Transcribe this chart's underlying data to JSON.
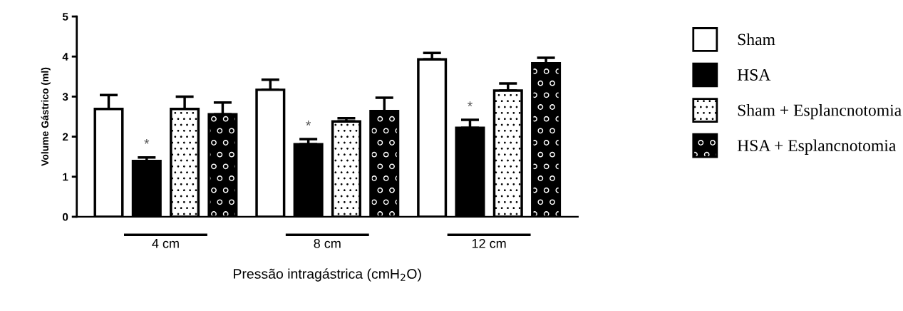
{
  "chart_data": {
    "type": "bar",
    "categories": [
      "4 cm",
      "8 cm",
      "12 cm"
    ],
    "series": [
      {
        "name": "Sham",
        "color": "#ffffff",
        "values": [
          2.69,
          3.17,
          3.93
        ],
        "errors": [
          0.35,
          0.25,
          0.16
        ]
      },
      {
        "name": "HSA",
        "color": "#000000",
        "values": [
          1.39,
          1.81,
          2.22
        ],
        "errors": [
          0.09,
          0.13,
          0.2
        ]
      },
      {
        "name": "Sham + Esplancnotomia",
        "color": "#ffffff",
        "values": [
          2.69,
          2.38,
          3.15
        ],
        "errors": [
          0.31,
          0.08,
          0.18
        ]
      },
      {
        "name": "HSA + Esplancnotomia",
        "color": "#000000",
        "values": [
          2.56,
          2.64,
          3.83
        ],
        "errors": [
          0.29,
          0.33,
          0.14
        ]
      }
    ],
    "ylabel": "Volume Gástrico (ml)",
    "xlabel": "Pressão intragástrica (cmH$_{2}$O)",
    "ylim": [
      0,
      5
    ],
    "yticks": [
      0,
      1,
      2,
      3,
      4,
      5
    ],
    "annotations": [
      "*",
      "*",
      "*"
    ],
    "legend": "right",
    "grid": false
  }
}
